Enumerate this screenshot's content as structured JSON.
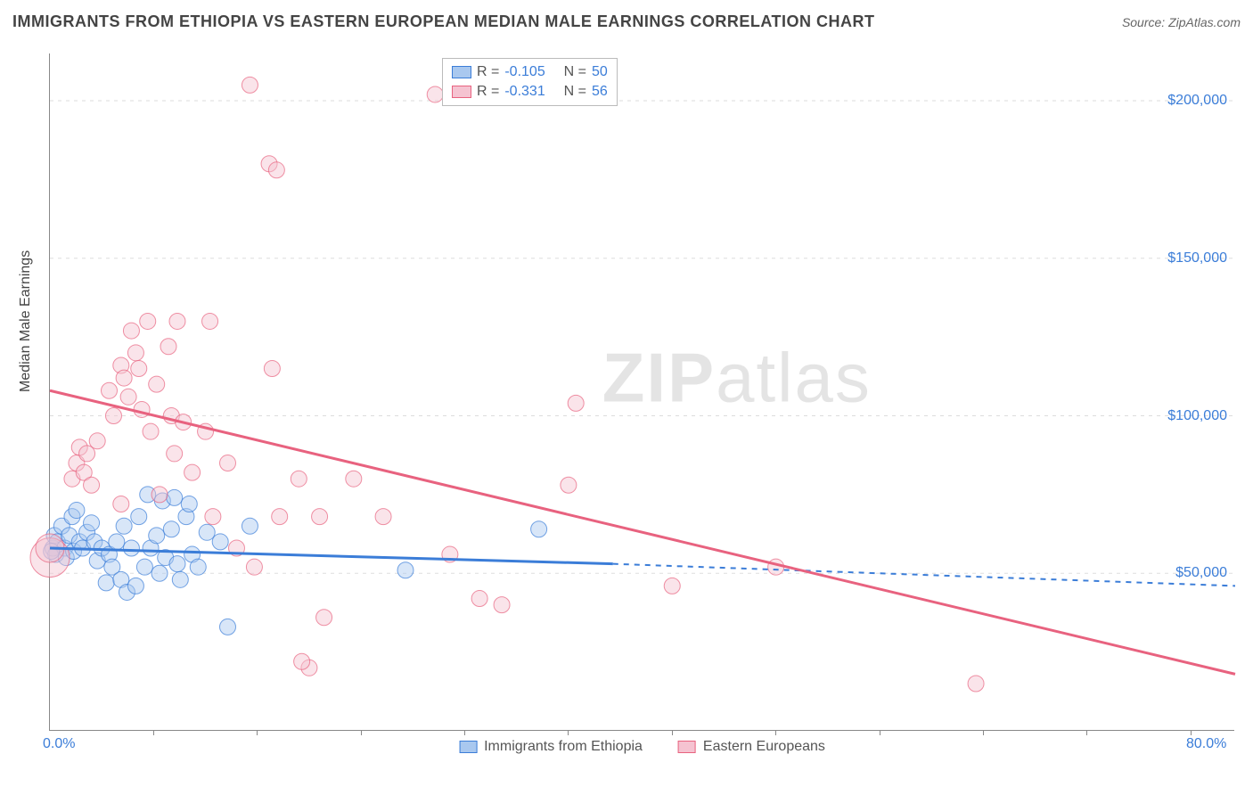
{
  "title": "IMMIGRANTS FROM ETHIOPIA VS EASTERN EUROPEAN MEDIAN MALE EARNINGS CORRELATION CHART",
  "source": "Source: ZipAtlas.com",
  "watermark_bold": "ZIP",
  "watermark_rest": "atlas",
  "yaxis_label": "Median Male Earnings",
  "chart": {
    "type": "scatter",
    "xlim": [
      0,
      80
    ],
    "ylim": [
      0,
      215000
    ],
    "x_unit": "%",
    "y_unit": "$",
    "x_tick_labels": {
      "0": "0.0%",
      "80": "80.0%"
    },
    "y_ticks": [
      50000,
      100000,
      150000,
      200000
    ],
    "y_tick_labels": [
      "$50,000",
      "$100,000",
      "$150,000",
      "$200,000"
    ],
    "x_minor_ticks": [
      7,
      14,
      21,
      28,
      35,
      42,
      49,
      56,
      63,
      70,
      77
    ],
    "background_color": "#ffffff",
    "grid_color": "#dddddd",
    "axis_color": "#888888",
    "label_color": "#3b7dd8",
    "marker_radius": 9,
    "marker_radius_large": 18,
    "marker_opacity": 0.45,
    "line_width": 3,
    "dash_pattern": "6 6"
  },
  "series": [
    {
      "name": "Immigrants from Ethiopia",
      "color_fill": "#a9c8ef",
      "color_stroke": "#3b7dd8",
      "R": "-0.105",
      "N": "50",
      "trend": {
        "y_at_x0": 58000,
        "y_at_x_solid_end": 53000,
        "x_solid_end": 38,
        "y_at_x80": 46000
      },
      "points": [
        {
          "x": 0.2,
          "y": 58000
        },
        {
          "x": 0.3,
          "y": 62000
        },
        {
          "x": 0.4,
          "y": 56000
        },
        {
          "x": 0.5,
          "y": 60000
        },
        {
          "x": 0.8,
          "y": 65000
        },
        {
          "x": 1.0,
          "y": 58000
        },
        {
          "x": 1.1,
          "y": 55000
        },
        {
          "x": 1.3,
          "y": 62000
        },
        {
          "x": 1.5,
          "y": 68000
        },
        {
          "x": 1.6,
          "y": 57000
        },
        {
          "x": 1.8,
          "y": 70000
        },
        {
          "x": 2.0,
          "y": 60000
        },
        {
          "x": 2.2,
          "y": 58000
        },
        {
          "x": 2.5,
          "y": 63000
        },
        {
          "x": 2.8,
          "y": 66000
        },
        {
          "x": 3.0,
          "y": 60000
        },
        {
          "x": 3.2,
          "y": 54000
        },
        {
          "x": 3.5,
          "y": 58000
        },
        {
          "x": 3.8,
          "y": 47000
        },
        {
          "x": 4.0,
          "y": 56000
        },
        {
          "x": 4.2,
          "y": 52000
        },
        {
          "x": 4.5,
          "y": 60000
        },
        {
          "x": 4.8,
          "y": 48000
        },
        {
          "x": 5.0,
          "y": 65000
        },
        {
          "x": 5.2,
          "y": 44000
        },
        {
          "x": 5.5,
          "y": 58000
        },
        {
          "x": 5.8,
          "y": 46000
        },
        {
          "x": 6.0,
          "y": 68000
        },
        {
          "x": 6.4,
          "y": 52000
        },
        {
          "x": 6.6,
          "y": 75000
        },
        {
          "x": 6.8,
          "y": 58000
        },
        {
          "x": 7.2,
          "y": 62000
        },
        {
          "x": 7.4,
          "y": 50000
        },
        {
          "x": 7.6,
          "y": 73000
        },
        {
          "x": 7.8,
          "y": 55000
        },
        {
          "x": 8.2,
          "y": 64000
        },
        {
          "x": 8.4,
          "y": 74000
        },
        {
          "x": 8.6,
          "y": 53000
        },
        {
          "x": 8.8,
          "y": 48000
        },
        {
          "x": 9.2,
          "y": 68000
        },
        {
          "x": 9.4,
          "y": 72000
        },
        {
          "x": 9.6,
          "y": 56000
        },
        {
          "x": 10.0,
          "y": 52000
        },
        {
          "x": 10.6,
          "y": 63000
        },
        {
          "x": 11.5,
          "y": 60000
        },
        {
          "x": 12.0,
          "y": 33000
        },
        {
          "x": 13.5,
          "y": 65000
        },
        {
          "x": 24.0,
          "y": 51000
        },
        {
          "x": 33.0,
          "y": 64000
        },
        {
          "x": 0.1,
          "y": 57000
        }
      ]
    },
    {
      "name": "Eastern Europeans",
      "color_fill": "#f5c3d1",
      "color_stroke": "#e8627f",
      "R": "-0.331",
      "N": "56",
      "trend": {
        "y_at_x0": 108000,
        "y_at_x80": 18000
      },
      "points": [
        {
          "x": 0.0,
          "y": 55000,
          "r": 22
        },
        {
          "x": 0.0,
          "y": 58000,
          "r": 16
        },
        {
          "x": 1.5,
          "y": 80000
        },
        {
          "x": 1.8,
          "y": 85000
        },
        {
          "x": 2.0,
          "y": 90000
        },
        {
          "x": 2.3,
          "y": 82000
        },
        {
          "x": 2.5,
          "y": 88000
        },
        {
          "x": 2.8,
          "y": 78000
        },
        {
          "x": 3.2,
          "y": 92000
        },
        {
          "x": 4.0,
          "y": 108000
        },
        {
          "x": 4.3,
          "y": 100000
        },
        {
          "x": 4.8,
          "y": 116000
        },
        {
          "x": 5.0,
          "y": 112000
        },
        {
          "x": 5.3,
          "y": 106000
        },
        {
          "x": 5.5,
          "y": 127000
        },
        {
          "x": 5.8,
          "y": 120000
        },
        {
          "x": 6.0,
          "y": 115000
        },
        {
          "x": 6.2,
          "y": 102000
        },
        {
          "x": 6.6,
          "y": 130000
        },
        {
          "x": 6.8,
          "y": 95000
        },
        {
          "x": 7.2,
          "y": 110000
        },
        {
          "x": 7.4,
          "y": 75000
        },
        {
          "x": 8.0,
          "y": 122000
        },
        {
          "x": 8.2,
          "y": 100000
        },
        {
          "x": 8.4,
          "y": 88000
        },
        {
          "x": 8.6,
          "y": 130000
        },
        {
          "x": 9.0,
          "y": 98000
        },
        {
          "x": 9.6,
          "y": 82000
        },
        {
          "x": 10.8,
          "y": 130000
        },
        {
          "x": 10.5,
          "y": 95000
        },
        {
          "x": 11.0,
          "y": 68000
        },
        {
          "x": 12.0,
          "y": 85000
        },
        {
          "x": 12.6,
          "y": 58000
        },
        {
          "x": 13.5,
          "y": 205000
        },
        {
          "x": 13.8,
          "y": 52000
        },
        {
          "x": 14.8,
          "y": 180000
        },
        {
          "x": 15.0,
          "y": 115000
        },
        {
          "x": 15.3,
          "y": 178000
        },
        {
          "x": 15.5,
          "y": 68000
        },
        {
          "x": 16.8,
          "y": 80000
        },
        {
          "x": 17.5,
          "y": 20000
        },
        {
          "x": 18.2,
          "y": 68000
        },
        {
          "x": 18.5,
          "y": 36000
        },
        {
          "x": 20.5,
          "y": 80000
        },
        {
          "x": 22.5,
          "y": 68000
        },
        {
          "x": 26.0,
          "y": 202000
        },
        {
          "x": 27.0,
          "y": 56000
        },
        {
          "x": 29.0,
          "y": 42000
        },
        {
          "x": 30.5,
          "y": 40000
        },
        {
          "x": 35.5,
          "y": 104000
        },
        {
          "x": 35.0,
          "y": 78000
        },
        {
          "x": 42.0,
          "y": 46000
        },
        {
          "x": 49.0,
          "y": 52000
        },
        {
          "x": 62.5,
          "y": 15000
        },
        {
          "x": 17.0,
          "y": 22000
        },
        {
          "x": 4.8,
          "y": 72000
        }
      ]
    }
  ],
  "legend_stats_labels": {
    "R": "R =",
    "N": "N ="
  },
  "bottom_legend_labels": [
    "Immigrants from Ethiopia",
    "Eastern Europeans"
  ]
}
